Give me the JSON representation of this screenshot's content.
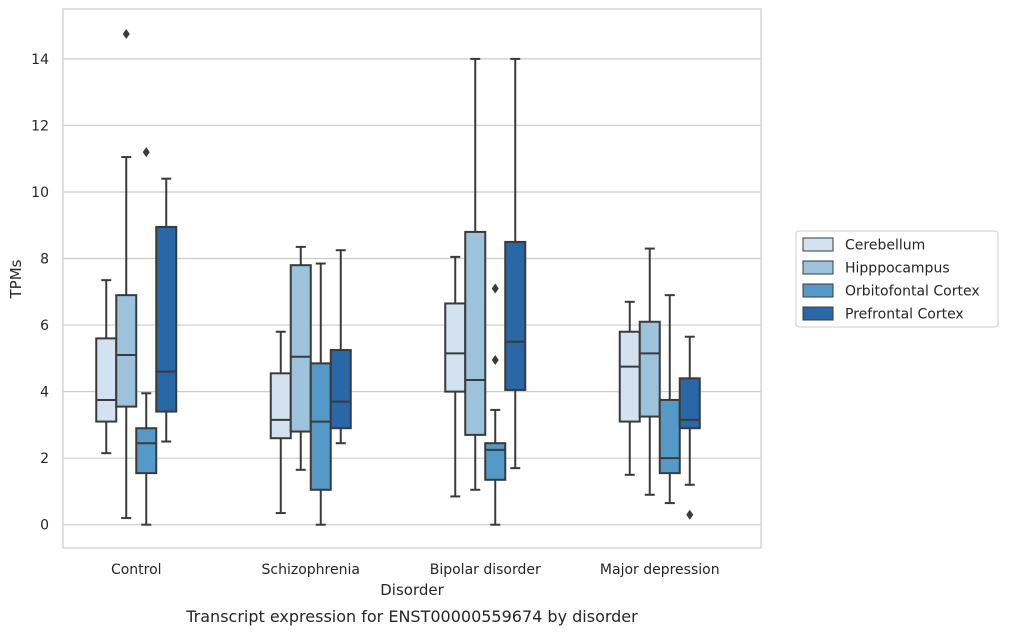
{
  "chart_data": {
    "type": "box",
    "caption": "Transcript expression for ENST00000559674 by disorder",
    "xlabel": "Disorder",
    "ylabel": "TPMs",
    "ylim": [
      -0.7,
      15.5
    ],
    "yticks": [
      0,
      2,
      4,
      6,
      8,
      10,
      12,
      14
    ],
    "grid": "horizontal",
    "legend_position": "right",
    "categories": [
      "Control",
      "Schizophrenia",
      "Bipolar disorder",
      "Major depression"
    ],
    "series": [
      {
        "name": "Cerebellum",
        "color": "#d3e2f0",
        "boxes": [
          {
            "whisker_low": 2.15,
            "q1": 3.1,
            "median": 3.75,
            "q3": 5.6,
            "whisker_high": 7.35,
            "outliers": []
          },
          {
            "whisker_low": 0.35,
            "q1": 2.6,
            "median": 3.15,
            "q3": 4.55,
            "whisker_high": 5.8,
            "outliers": []
          },
          {
            "whisker_low": 0.85,
            "q1": 4.0,
            "median": 5.15,
            "q3": 6.65,
            "whisker_high": 8.05,
            "outliers": []
          },
          {
            "whisker_low": 1.5,
            "q1": 3.1,
            "median": 4.75,
            "q3": 5.8,
            "whisker_high": 6.7,
            "outliers": []
          }
        ]
      },
      {
        "name": "Hipppocampus",
        "color": "#9cc2dc",
        "boxes": [
          {
            "whisker_low": 0.2,
            "q1": 3.55,
            "median": 5.1,
            "q3": 6.9,
            "whisker_high": 11.05,
            "outliers": [
              14.75
            ]
          },
          {
            "whisker_low": 1.65,
            "q1": 2.8,
            "median": 5.05,
            "q3": 7.8,
            "whisker_high": 8.35,
            "outliers": []
          },
          {
            "whisker_low": 1.05,
            "q1": 2.7,
            "median": 4.35,
            "q3": 8.8,
            "whisker_high": 14.0,
            "outliers": []
          },
          {
            "whisker_low": 0.9,
            "q1": 3.25,
            "median": 5.15,
            "q3": 6.1,
            "whisker_high": 8.3,
            "outliers": []
          }
        ]
      },
      {
        "name": "Orbitofontal Cortex",
        "color": "#5499c7",
        "boxes": [
          {
            "whisker_low": 0.0,
            "q1": 1.55,
            "median": 2.45,
            "q3": 2.9,
            "whisker_high": 3.95,
            "outliers": [
              11.2
            ]
          },
          {
            "whisker_low": 0.0,
            "q1": 1.05,
            "median": 3.1,
            "q3": 4.85,
            "whisker_high": 7.85,
            "outliers": []
          },
          {
            "whisker_low": 0.0,
            "q1": 1.35,
            "median": 2.25,
            "q3": 2.45,
            "whisker_high": 3.45,
            "outliers": [
              4.95,
              7.1
            ]
          },
          {
            "whisker_low": 0.65,
            "q1": 1.55,
            "median": 2.0,
            "q3": 3.75,
            "whisker_high": 6.9,
            "outliers": []
          }
        ]
      },
      {
        "name": "Prefrontal Cortex",
        "color": "#2a67a6",
        "boxes": [
          {
            "whisker_low": 2.5,
            "q1": 3.4,
            "median": 4.6,
            "q3": 8.95,
            "whisker_high": 10.4,
            "outliers": []
          },
          {
            "whisker_low": 2.45,
            "q1": 2.9,
            "median": 3.7,
            "q3": 5.25,
            "whisker_high": 8.25,
            "outliers": []
          },
          {
            "whisker_low": 1.7,
            "q1": 4.05,
            "median": 5.5,
            "q3": 8.5,
            "whisker_high": 14.0,
            "outliers": []
          },
          {
            "whisker_low": 1.2,
            "q1": 2.9,
            "median": 3.15,
            "q3": 4.4,
            "whisker_high": 5.65,
            "outliers": [
              0.3
            ]
          }
        ]
      }
    ]
  }
}
